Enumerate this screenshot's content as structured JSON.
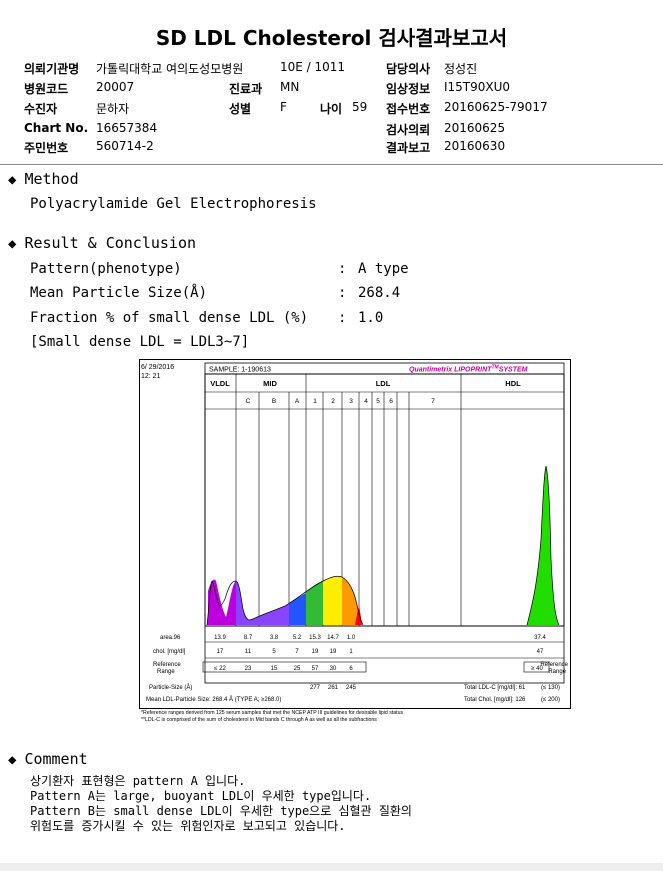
{
  "title": "SD LDL Cholesterol 검사결과보고서",
  "info": {
    "institution_label": "의뢰기관명",
    "institution": "가톨릭대학교 여의도성모병원",
    "ward_value": "10E / 1011",
    "doctor_label": "담당의사",
    "doctor": "정성진",
    "hospital_code_label": "병원코드",
    "hospital_code": "20007",
    "dept_label": "진료과",
    "dept": "MN",
    "clinical_label": "임상정보",
    "clinical": "I15T90XU0",
    "sample_label": "수진자",
    "sample": "문하자",
    "sex_label": "성별",
    "sex": "F",
    "age_label": "나이",
    "age": "59",
    "receipt_label": "접수번호",
    "receipt": "20160625-79017",
    "chart_label": "Chart No.",
    "chart": "16657384",
    "request_label": "검사의뢰",
    "request": "20160625",
    "id_label": "주민번호",
    "id": "560714-2",
    "report_label": "결과보고",
    "report": "20160630"
  },
  "method": {
    "heading": "Method",
    "text": "Polyacrylamide Gel Electrophoresis"
  },
  "result": {
    "heading": "Result & Conclusion",
    "rows": [
      {
        "label": "Pattern(phenotype)",
        "value": "A type"
      },
      {
        "label": "Mean Particle Size(Å)",
        "value": "268.4"
      },
      {
        "label": "Fraction % of small dense LDL (%)",
        "value": "1.0"
      }
    ],
    "note": "[Small dense LDL = LDL3~7]",
    "colon": ":"
  },
  "lipoprint": {
    "date": "6/ 29/2016",
    "time": "12: 21",
    "sample": "SAMPLE:   1-190613",
    "brand": "Quantimetrix LIPOPRINT",
    "brand_tm": "TM",
    "brand_suffix": "SYSTEM",
    "bands_group": {
      "vldl": "VLDL",
      "mid": "MID",
      "ldl": "LDL",
      "hdl": "HDL"
    },
    "band_labels": [
      "C",
      "B",
      "A",
      "1",
      "2",
      "3",
      "4",
      "5",
      "6",
      "7"
    ],
    "area_label": "area.96",
    "area_values": [
      "13.9",
      "8.7",
      "3.8",
      "5.2",
      "15.3",
      "14.7",
      "1.0",
      "37.4"
    ],
    "chol_label": "chol. [mg/dl]",
    "chol_values": [
      "17",
      "11",
      "5",
      "7",
      "19",
      "19",
      "1",
      "47"
    ],
    "ref_label_1": "Reference",
    "ref_label_2": "Range",
    "ref_values": [
      "≤ 22",
      "23",
      "15",
      "25",
      "57",
      "30",
      "6"
    ],
    "ref_hdl": "≥ 40",
    "particle_label": "Particle-Size (Å)",
    "particle_values": [
      "277",
      "261",
      "245"
    ],
    "total_ldl": "Total LDL-C [mg/dl]:  61",
    "total_ldl_range": "(≤ 130)",
    "mean_label": "Mean LDL-Particle Size:   268.4 Å   (TYPE A; ≥268.0)",
    "total_chol": "Total Chol. [mg/dl]:   126",
    "total_chol_range": "(≤ 200)",
    "footnote1": "*Reference ranges derived from 125 serum samples that met the NCEP ATP III guidelines for desirable lipid status",
    "footnote2": "**LDL-C is comprised of the sum of cholesterol in Mid bands C through A as well as all the subfractions",
    "colors": {
      "vldl": "#cc00cc",
      "mid": "#2255ff",
      "ldl1": "#ffee00",
      "ldl2": "#ff9900",
      "ldl3": "#ff0000",
      "hdl": "#22dd00"
    }
  },
  "comment": {
    "heading": "Comment",
    "lines": [
      "상기환자 표현형은 pattern A 입니다.",
      "Pattern A는 large, buoyant LDL이 우세한 type입니다.",
      "Pattern B는 small dense LDL이 우세한 type으로 심혈관 질환의",
      "위험도를 증가시킬 수 있는 위험인자로 보고되고 있습니다."
    ]
  }
}
